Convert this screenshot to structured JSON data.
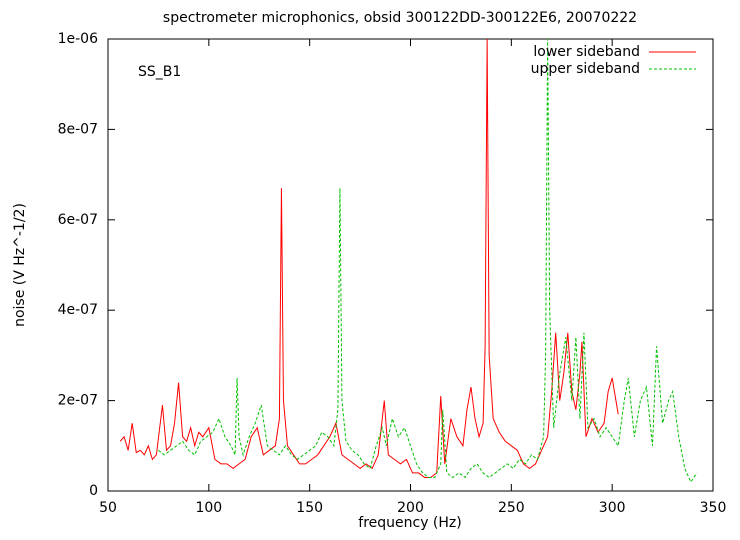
{
  "chart_data": {
    "type": "line",
    "title": "spectrometer microphonics, obsid 300122DD-300122E6, 20070222",
    "annotation": "SS_B1",
    "xlabel": "frequency (Hz)",
    "ylabel": "noise (V Hz^-1/2)",
    "xlim": [
      50,
      350
    ],
    "xticks": [
      50,
      100,
      150,
      200,
      250,
      300,
      350
    ],
    "ylim": [
      0,
      1e-06
    ],
    "yticks": [
      0,
      {
        "value": 2e-07,
        "label": "2e-07"
      },
      {
        "value": 4e-07,
        "label": "4e-07"
      },
      {
        "value": 6e-07,
        "label": "6e-07"
      },
      {
        "value": 8e-07,
        "label": "8e-07"
      },
      {
        "value": 1e-06,
        "label": "1e-06"
      }
    ],
    "legend": "upper right",
    "series": [
      {
        "name": "lower sideband",
        "color": "#ff0000",
        "dash": false,
        "x": [
          56,
          58,
          60,
          62,
          64,
          66,
          68,
          70,
          72,
          74,
          77,
          79,
          81,
          83,
          85,
          87,
          89,
          91,
          93,
          95,
          97,
          100,
          103,
          106,
          109,
          112,
          115,
          118,
          121,
          124,
          127,
          130,
          133,
          135,
          136,
          137,
          139,
          142,
          145,
          148,
          151,
          154,
          157,
          160,
          163,
          166,
          169,
          172,
          175,
          178,
          181,
          184,
          187,
          189,
          192,
          195,
          198,
          201,
          204,
          207,
          210,
          213,
          215,
          217,
          220,
          223,
          226,
          228,
          230,
          232,
          234,
          236,
          237,
          238,
          239,
          241,
          244,
          247,
          250,
          253,
          256,
          259,
          262,
          265,
          268,
          270,
          272,
          274,
          276,
          278,
          280,
          282,
          284,
          285,
          287,
          290,
          293,
          296,
          298,
          300,
          303
        ],
        "values": [
          1.1e-07,
          1.2e-07,
          9e-08,
          1.5e-07,
          8.5e-08,
          9e-08,
          8e-08,
          1e-07,
          7e-08,
          8e-08,
          1.9e-07,
          9e-08,
          1e-07,
          1.5e-07,
          2.4e-07,
          1.2e-07,
          1.1e-07,
          1.4e-07,
          1e-07,
          1.3e-07,
          1.2e-07,
          1.4e-07,
          7e-08,
          6e-08,
          6e-08,
          5e-08,
          6e-08,
          7e-08,
          1.2e-07,
          1.4e-07,
          8e-08,
          9e-08,
          1e-07,
          1.6e-07,
          6.7e-07,
          2e-07,
          1e-07,
          8e-08,
          6e-08,
          6e-08,
          7e-08,
          8e-08,
          1e-07,
          1.2e-07,
          1.5e-07,
          8e-08,
          7e-08,
          6e-08,
          5e-08,
          6e-08,
          5e-08,
          8e-08,
          2e-07,
          8e-08,
          7e-08,
          6e-08,
          7e-08,
          4e-08,
          4e-08,
          3e-08,
          3e-08,
          4e-08,
          2.1e-07,
          6e-08,
          1.6e-07,
          1.2e-07,
          1e-07,
          1.8e-07,
          2.3e-07,
          1.6e-07,
          1.2e-07,
          1.5e-07,
          3.2e-07,
          1e-06,
          3e-07,
          1.6e-07,
          1.3e-07,
          1.1e-07,
          1e-07,
          9e-08,
          6e-08,
          5e-08,
          6e-08,
          9e-08,
          1.2e-07,
          2.2e-07,
          3.5e-07,
          2e-07,
          2.6e-07,
          3.5e-07,
          2.2e-07,
          1.8e-07,
          2.6e-07,
          3.3e-07,
          1.2e-07,
          1.6e-07,
          1.3e-07,
          1.5e-07,
          2.2e-07,
          2.5e-07,
          1.7e-07
        ]
      },
      {
        "name": "upper sideband",
        "color": "#00c000",
        "dash": true,
        "x": [
          75,
          78,
          81,
          84,
          87,
          90,
          93,
          96,
          99,
          102,
          105,
          108,
          111,
          113,
          114,
          115,
          117,
          120,
          123,
          126,
          129,
          132,
          135,
          138,
          141,
          144,
          147,
          150,
          153,
          156,
          159,
          162,
          164,
          165,
          166,
          168,
          171,
          174,
          177,
          180,
          183,
          186,
          188,
          191,
          194,
          197,
          200,
          203,
          206,
          209,
          212,
          215,
          216,
          218,
          221,
          224,
          227,
          230,
          233,
          236,
          239,
          242,
          245,
          248,
          251,
          254,
          257,
          260,
          263,
          266,
          267,
          268,
          269,
          271,
          274,
          277,
          280,
          282,
          284,
          286,
          288,
          291,
          294,
          297,
          300,
          303,
          306,
          308,
          311,
          314,
          317,
          320,
          322,
          325,
          328,
          330,
          333,
          336,
          339,
          342
        ],
        "values": [
          9e-08,
          8e-08,
          9e-08,
          1e-07,
          1.1e-07,
          9e-08,
          8e-08,
          1.1e-07,
          1.2e-07,
          1.3e-07,
          1.6e-07,
          1.2e-07,
          1e-07,
          8e-08,
          2.5e-07,
          1.2e-07,
          8e-08,
          1.2e-07,
          1.5e-07,
          1.9e-07,
          1e-07,
          9e-08,
          8e-08,
          1e-07,
          8e-08,
          7e-08,
          8e-08,
          9e-08,
          1e-07,
          1.3e-07,
          1.2e-07,
          1e-07,
          1.8e-07,
          6.7e-07,
          2e-07,
          1.1e-07,
          9e-08,
          8e-08,
          6e-08,
          5e-08,
          1e-07,
          1.4e-07,
          1e-07,
          1.6e-07,
          1.2e-07,
          1.4e-07,
          1e-07,
          6e-08,
          4e-08,
          3e-08,
          3e-08,
          6e-08,
          1.8e-07,
          4e-08,
          3e-08,
          4e-08,
          3e-08,
          5e-08,
          6e-08,
          4e-08,
          3e-08,
          4e-08,
          5e-08,
          6e-08,
          5e-08,
          7e-08,
          6e-08,
          8e-08,
          7e-08,
          1.2e-07,
          3e-07,
          1e-06,
          4e-07,
          1.4e-07,
          2.6e-07,
          3.4e-07,
          2e-07,
          3.4e-07,
          1.6e-07,
          3.5e-07,
          1.4e-07,
          1.6e-07,
          1.2e-07,
          1.4e-07,
          1.2e-07,
          1e-07,
          2e-07,
          2.5e-07,
          1.2e-07,
          2e-07,
          2.3e-07,
          1e-07,
          3.2e-07,
          1.5e-07,
          2e-07,
          2.2e-07,
          1.2e-07,
          5e-08,
          2e-08,
          4e-08
        ]
      }
    ]
  }
}
